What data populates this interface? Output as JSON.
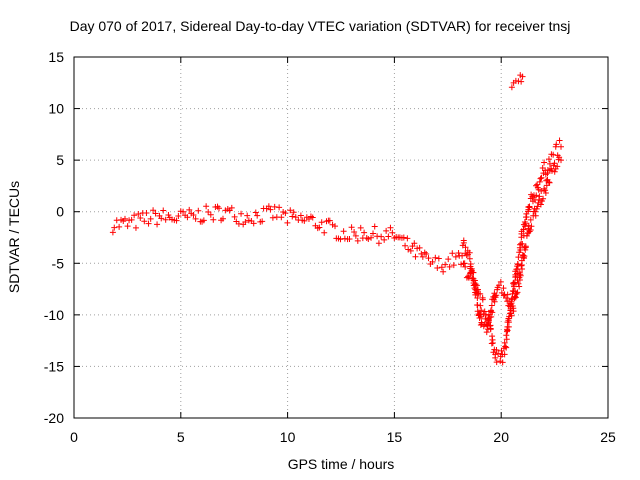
{
  "chart_data": {
    "type": "scatter",
    "title": "Day 070 of 2017, Sidereal Day-to-day VTEC variation (SDTVAR) for receiver tnsj",
    "xlabel": "GPS time / hours",
    "ylabel": "SDTVAR / TECUs",
    "xlim": [
      0,
      25
    ],
    "ylim": [
      -20,
      15
    ],
    "xticks": [
      "0",
      "5",
      "10",
      "15",
      "20",
      "25"
    ],
    "yticks": [
      "15",
      "10",
      "5",
      "0",
      "-5",
      "-10",
      "-15",
      "-20"
    ],
    "grid": true,
    "marker": "+",
    "color": "#ff0000",
    "series": [
      {
        "band": 0.8,
        "x": [
          1.8,
          2.5,
          3.0,
          3.5,
          4.0,
          4.5,
          5.0,
          5.5,
          6.0,
          6.5,
          7.0,
          7.5,
          8.0,
          8.5,
          9.0,
          9.5,
          10.0,
          10.5,
          11.0,
          11.5,
          12.0,
          12.5,
          13.0,
          13.5,
          14.0,
          14.5,
          15.0,
          15.5,
          16.0,
          16.5,
          17.0,
          17.5,
          18.0,
          18.5,
          19.0,
          19.3,
          19.6,
          19.8,
          20.0,
          20.2,
          20.4,
          20.6,
          20.8,
          21.0,
          21.2,
          21.5,
          21.8,
          22.0,
          22.3,
          22.6,
          22.8
        ],
        "y": [
          -1.2,
          -1.2,
          -0.9,
          -0.6,
          -0.5,
          -0.6,
          -0.6,
          -0.5,
          -0.3,
          -0.2,
          0.0,
          -0.3,
          -0.5,
          -0.4,
          -0.3,
          -0.1,
          -0.6,
          -0.8,
          -0.8,
          -1.2,
          -1.6,
          -2.0,
          -2.3,
          -2.0,
          -2.2,
          -2.3,
          -2.3,
          -3.2,
          -3.9,
          -4.7,
          -5.2,
          -4.9,
          -4.5,
          -6.0,
          -8.5,
          -10.0,
          -12.5,
          -14.0,
          -14.5,
          -13.0,
          -10.0,
          -7.0,
          -4.5,
          -2.5,
          -0.5,
          1.5,
          3.0,
          4.0,
          5.0,
          5.8,
          6.3
        ]
      },
      {
        "band": 0.6,
        "x": [
          18.2,
          18.5,
          18.7,
          18.9,
          19.1,
          19.3,
          19.5,
          19.7,
          19.9,
          20.1,
          20.3,
          20.5,
          20.7,
          20.9,
          21.1,
          21.4,
          21.7,
          22.0,
          22.3,
          22.6,
          22.8
        ],
        "y": [
          -3.0,
          -4.5,
          -6.5,
          -9.0,
          -11.0,
          -11.5,
          -10.0,
          -8.0,
          -7.0,
          -7.5,
          -8.5,
          -9.5,
          -8.0,
          -6.0,
          -3.5,
          -1.0,
          0.5,
          2.0,
          3.5,
          4.5,
          5.0
        ]
      },
      {
        "band": 0.5,
        "x": [
          20.5,
          20.7,
          20.9,
          21.0
        ],
        "y": [
          12.3,
          12.6,
          12.9,
          13.1
        ]
      }
    ]
  }
}
